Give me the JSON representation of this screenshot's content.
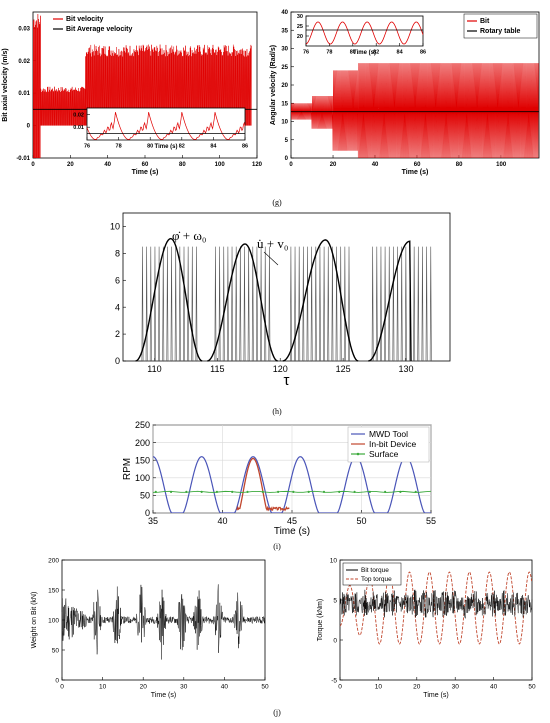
{
  "panel_labels": {
    "g": "(g)",
    "h": "(h)",
    "i": "(i)",
    "j": "(j)"
  },
  "chart_data": [
    {
      "id": "g-left",
      "type": "line",
      "xlabel": "Time (s)",
      "ylabel": "Bit axial velocity  (m/s)",
      "xlim": [
        0,
        120
      ],
      "ylim": [
        -0.01,
        0.035
      ],
      "xticks": [
        "0",
        "20",
        "40",
        "60",
        "80",
        "100",
        "120"
      ],
      "yticks": [
        "-0.01",
        "0",
        "0.01",
        "0.02",
        "0.03"
      ],
      "legend": "top-left",
      "series": [
        {
          "name": "Bit velocity",
          "color": "#e00000",
          "regime": [
            {
              "t": [
                0,
                4
              ],
              "low": -0.01,
              "high": 0.035
            },
            {
              "t": [
                4,
                28
              ],
              "low": 0.0,
              "high": 0.012
            },
            {
              "t": [
                28,
                117
              ],
              "low": 0.0,
              "high": 0.025
            }
          ]
        },
        {
          "name": "Bit Average velocity",
          "color": "#000000",
          "value": 0.005
        }
      ],
      "inset": {
        "xlim": [
          76,
          86
        ],
        "ylim": [
          0,
          0.025
        ],
        "xticks": [
          "76",
          "78",
          "80",
          "82",
          "84",
          "86"
        ],
        "yticks": [
          "0.01",
          "0.02"
        ],
        "xlabel": "Time (s)",
        "period": 2.1,
        "peak": 0.024,
        "avg": 0.005
      }
    },
    {
      "id": "g-right",
      "type": "line",
      "xlabel": "Time (s)",
      "ylabel": "Angular  velocity  (Rad/s)",
      "xlim": [
        0,
        118
      ],
      "ylim": [
        0,
        40
      ],
      "xticks": [
        "0",
        "20",
        "40",
        "60",
        "80",
        "100"
      ],
      "yticks": [
        "0",
        "5",
        "10",
        "15",
        "20",
        "25",
        "30",
        "35",
        "40"
      ],
      "legend": "top-right",
      "series": [
        {
          "name": "Bit",
          "color": "#e00000",
          "regime": [
            {
              "t": [
                0,
                10
              ],
              "low": 10.5,
              "high": 15
            },
            {
              "t": [
                10,
                20
              ],
              "low": 8,
              "high": 17
            },
            {
              "t": [
                20,
                32
              ],
              "low": 2,
              "high": 24
            },
            {
              "t": [
                32,
                118
              ],
              "low": 0,
              "high": 26
            }
          ]
        },
        {
          "name": "Rotary table",
          "color": "#000000",
          "value": 12.7
        }
      ],
      "inset": {
        "xlim": [
          76,
          86
        ],
        "ylim": [
          15,
          30
        ],
        "xticks": [
          "76",
          "78",
          "80",
          "82",
          "84",
          "86"
        ],
        "yticks": [
          "20",
          "25",
          "30"
        ],
        "xlabel": "Time (s)",
        "period": 2.1,
        "low": 16,
        "high": 27,
        "avg": 23
      }
    },
    {
      "id": "h",
      "type": "line",
      "xlabel": "τ",
      "xlim": [
        107.5,
        133.5
      ],
      "ylim": [
        0,
        11
      ],
      "xticks": [
        "110",
        "115",
        "120",
        "125",
        "130"
      ],
      "yticks": [
        "0",
        "2",
        "4",
        "6",
        "8",
        "10"
      ],
      "annotations": [
        "φ̇ + ω₀",
        "u̇ + v₀"
      ],
      "series": [
        {
          "name": "φ̇ + ω₀",
          "color": "#000000",
          "humps": [
            {
              "start": 108.5,
              "peak_t": 111.3,
              "end": 113.8,
              "peak": 9.1
            },
            {
              "start": 114.2,
              "peak_t": 117.2,
              "end": 119.8,
              "peak": 8.7
            },
            {
              "start": 120.2,
              "peak_t": 123.6,
              "end": 126.2,
              "peak": 9.0
            },
            {
              "start": 127.0,
              "peak_t": 130.3,
              "end": 130.4,
              "peak": 8.9
            }
          ]
        },
        {
          "name": "u̇ + v₀",
          "color": "#555555",
          "spike_height": 8.5,
          "spike_period": 0.33,
          "bursts": [
            [
              109.0,
              113.4
            ],
            [
              114.8,
              119.2
            ],
            [
              120.8,
              125.6
            ],
            [
              127.3,
              132.2
            ]
          ]
        }
      ]
    },
    {
      "id": "i",
      "type": "line",
      "xlabel": "Time (s)",
      "ylabel": "RPM",
      "xlim": [
        35,
        55
      ],
      "ylim": [
        0,
        250
      ],
      "xticks": [
        "35",
        "40",
        "45",
        "50",
        "55"
      ],
      "yticks": [
        "0",
        "50",
        "100",
        "150",
        "200",
        "250"
      ],
      "grid": true,
      "legend": "top-right",
      "series": [
        {
          "name": "MWD Tool",
          "color": "#4a55b8",
          "peaks": [
            35.0,
            38.5,
            42.2,
            45.6,
            49.6,
            53.2
          ],
          "peak_value": 160,
          "period": 3.6
        },
        {
          "name": "In-bit Device",
          "color": "#c1462d",
          "windows": [
            [
              41.0,
              44.8
            ]
          ],
          "peak_value": 155
        },
        {
          "name": "Surface",
          "color": "#3caa3c",
          "value": 60
        }
      ]
    },
    {
      "id": "j-left",
      "type": "line",
      "xlabel": "Time (s)",
      "ylabel": "Weight on Bit (kN)",
      "xlim": [
        0,
        50
      ],
      "ylim": [
        0,
        200
      ],
      "xticks": [
        "0",
        "10",
        "20",
        "30",
        "40",
        "50"
      ],
      "yticks": [
        "0",
        "50",
        "100",
        "150",
        "200"
      ],
      "series": [
        {
          "name": "Weight on Bit",
          "color": "#000000",
          "center": 100,
          "bursts_t": [
            8.5,
            13.5,
            19.5,
            24.5,
            29.5,
            33.5,
            38.5,
            43.5
          ],
          "burst_amp": 70,
          "initial_amp": 45,
          "base_amp": 6
        }
      ]
    },
    {
      "id": "j-right",
      "type": "line",
      "xlabel": "Time (s)",
      "ylabel": "Torque (kNm)",
      "xlim": [
        0,
        50
      ],
      "ylim": [
        -5,
        10
      ],
      "xticks": [
        "0",
        "10",
        "20",
        "30",
        "40",
        "50"
      ],
      "yticks": [
        "-5",
        "0",
        "5",
        "10"
      ],
      "legend": "top-left",
      "series": [
        {
          "name": "Bit torque",
          "color": "#000000",
          "center": 4.5,
          "amp": 1.3
        },
        {
          "name": "Top torque",
          "color": "#c1462d",
          "center": 4.0,
          "amp": 4.5,
          "period": 5.2
        }
      ]
    }
  ]
}
